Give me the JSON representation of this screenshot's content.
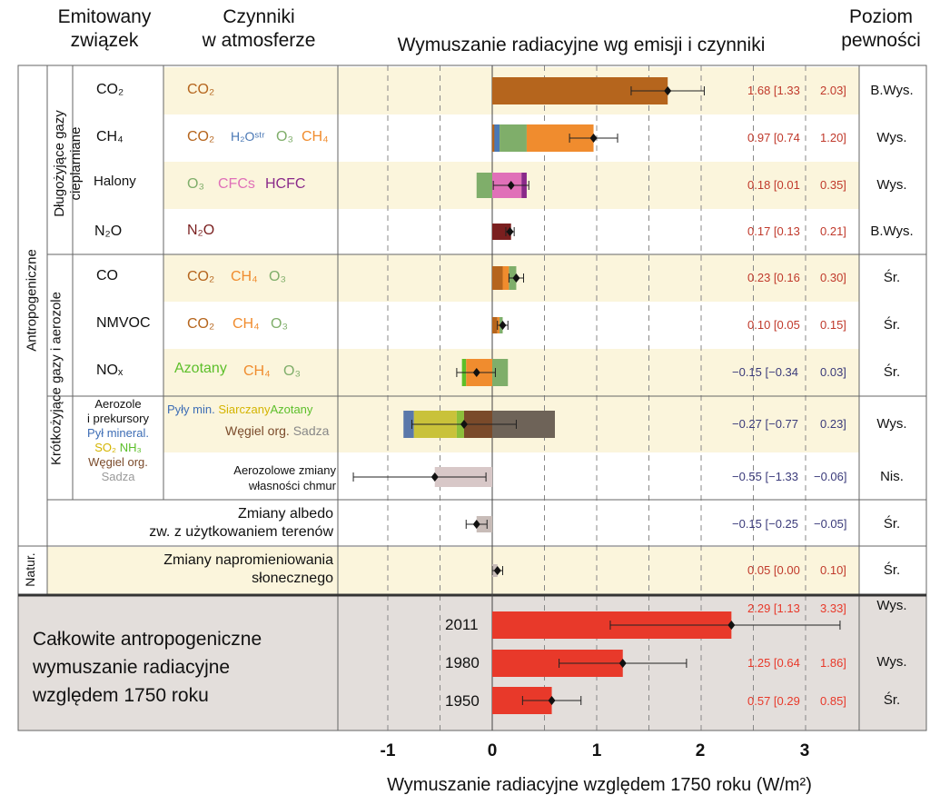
{
  "headers": {
    "emitted_line1": "Emitowany",
    "emitted_line2": "związek",
    "drivers_line1": "Czynniki",
    "drivers_line2": "w atmosferze",
    "forcing": "Wymuszanie radiacyjne wg emisji i czynniki",
    "confidence_line1": "Poziom",
    "confidence_line2": "pewności"
  },
  "groups": {
    "anthropogenic": "Antropogeniczne",
    "natural": "Natur.",
    "long_lived": "Długożyjące gazy cieplarniane",
    "short_lived": "Krótkożyjące gazy i aerozole"
  },
  "rows": [
    {
      "emitted": "CO₂",
      "drivers": [
        {
          "t": "CO₂",
          "c": "#b5651d"
        }
      ],
      "value": "1.68 [1.33",
      "upper": "2.03]",
      "confidence": "B.Wys."
    },
    {
      "emitted": "CH₄",
      "drivers": [
        {
          "t": "CO₂",
          "c": "#b5651d"
        },
        {
          "t": "H₂Oˢᵗʳ",
          "c": "#4a78b5"
        },
        {
          "t": "O₃",
          "c": "#7fae6a"
        },
        {
          "t": "CH₄",
          "c": "#f08c2e"
        }
      ],
      "value": "0.97 [0.74",
      "upper": "1.20]",
      "confidence": "Wys."
    },
    {
      "emitted": "Halony",
      "drivers": [
        {
          "t": "O₃",
          "c": "#7fae6a"
        },
        {
          "t": "CFCs",
          "c": "#e070b8"
        },
        {
          "t": "HCFC",
          "c": "#8a2a8a"
        }
      ],
      "value": "0.18 [0.01",
      "upper": "0.35]",
      "confidence": "Wys."
    },
    {
      "emitted": "N₂O",
      "drivers": [
        {
          "t": "N₂O",
          "c": "#7a1f1f"
        }
      ],
      "value": "0.17 [0.13",
      "upper": "0.21]",
      "confidence": "B.Wys."
    },
    {
      "emitted": "CO",
      "drivers": [
        {
          "t": "CO₂",
          "c": "#b5651d"
        },
        {
          "t": "CH₄",
          "c": "#f08c2e"
        },
        {
          "t": "O₃",
          "c": "#7fae6a"
        }
      ],
      "value": "0.23 [0.16",
      "upper": "0.30]",
      "confidence": "Śr."
    },
    {
      "emitted": "NMVOC",
      "drivers": [
        {
          "t": "CO₂",
          "c": "#b5651d"
        },
        {
          "t": "CH₄",
          "c": "#f08c2e"
        },
        {
          "t": "O₃",
          "c": "#7fae6a"
        }
      ],
      "value": "0.10 [0.05",
      "upper": "0.15]",
      "confidence": "Śr."
    },
    {
      "emitted": "NOₓ",
      "drivers": [
        {
          "t": "Azotany",
          "c": "#5cbf2a"
        },
        {
          "t": "CH₄",
          "c": "#f08c2e"
        },
        {
          "t": "O₃",
          "c": "#7fae6a"
        }
      ],
      "value": "−0.15 [−0.34",
      "upper": "0.03]",
      "confidence": "Śr."
    },
    {
      "emitted": "",
      "drivers": [],
      "value": "−0.27 [−0.77",
      "upper": "0.23]",
      "confidence": "Wys."
    },
    {
      "emitted": "",
      "drivers": [],
      "value": "−0.55 [−1.33",
      "upper": "−0.06]",
      "confidence": "Nis."
    },
    {
      "emitted": "",
      "drivers": [],
      "value": "−0.15 [−0.25",
      "upper": "−0.05]",
      "confidence": "Śr."
    },
    {
      "emitted": "",
      "drivers": [],
      "value": "0.05 [0.00",
      "upper": "0.10]",
      "confidence": "Śr."
    }
  ],
  "aerosol_emitted": {
    "line1": "Aerozole",
    "line2": "i prekursory",
    "line3": "Pył mineral.",
    "line4a": "SO₂",
    "line4b": "NH₃",
    "line5": "Węgiel org.",
    "line6": "Sadza"
  },
  "aerosol_drivers": {
    "dust": "Pyły min.",
    "sulphate": "Siarczany",
    "nitrate": "Azotany",
    "organic": "Węgiel org.",
    "bc": "Sadza"
  },
  "cloud_label_line1": "Aerozolowe zmiany",
  "cloud_label_line2": "własności chmur",
  "albedo_line1": "Zmiany albedo",
  "albedo_line2": "zw. z użytkowaniem terenów",
  "solar_line1": "Zmiany napromieniowania",
  "solar_line2": "słonecznego",
  "total": {
    "line1": "Całkowite antropogeniczne",
    "line2": "wymuszanie radiacyjne",
    "line3": "względem 1750 roku",
    "years": [
      {
        "year": "2011",
        "value": "2.29 [1.13",
        "upper": "3.33]",
        "confidence": "Wys."
      },
      {
        "year": "1980",
        "value": "1.25 [0.64",
        "upper": "1.86]",
        "confidence": "Wys."
      },
      {
        "year": "1950",
        "value": "0.57 [0.29",
        "upper": "0.85]",
        "confidence": "Śr."
      }
    ]
  },
  "xaxis": {
    "ticks": [
      "-1",
      "0",
      "1",
      "2",
      "3"
    ],
    "label": "Wymuszanie radiacyjne względem 1750 roku (W/m²)"
  },
  "chart_data": {
    "type": "bar",
    "xlim": [
      -1.45,
      3.5
    ],
    "xlabel": "Wymuszanie radiacyjne względem 1750 roku (W/m²)",
    "grid": "dashed vertical at 0.5 steps",
    "rows": [
      {
        "label": "CO₂",
        "best": 1.68,
        "low": 1.33,
        "high": 2.03,
        "segments": [
          {
            "from": 0,
            "to": 1.68,
            "color": "#b5651d"
          }
        ]
      },
      {
        "label": "CH₄",
        "best": 0.97,
        "low": 0.74,
        "high": 1.2,
        "segments": [
          {
            "from": 0,
            "to": 0.07,
            "color": "#4a78b5"
          },
          {
            "from": 0.07,
            "to": 0.33,
            "color": "#7fae6a"
          },
          {
            "from": 0.33,
            "to": 0.97,
            "color": "#f08c2e"
          },
          {
            "from": 0,
            "to": 0.02,
            "color": "#b5651d"
          }
        ]
      },
      {
        "label": "Halony",
        "best": 0.18,
        "low": 0.01,
        "high": 0.35,
        "segments": [
          {
            "from": -0.15,
            "to": 0,
            "color": "#7fae6a"
          },
          {
            "from": 0,
            "to": 0.28,
            "color": "#e070b8"
          },
          {
            "from": 0.28,
            "to": 0.33,
            "color": "#8a2a8a"
          }
        ]
      },
      {
        "label": "N₂O",
        "best": 0.17,
        "low": 0.13,
        "high": 0.21,
        "segments": [
          {
            "from": 0,
            "to": 0.18,
            "color": "#7a1f1f"
          }
        ]
      },
      {
        "label": "CO",
        "best": 0.23,
        "low": 0.16,
        "high": 0.3,
        "segments": [
          {
            "from": 0,
            "to": 0.1,
            "color": "#b5651d"
          },
          {
            "from": 0.1,
            "to": 0.16,
            "color": "#f08c2e"
          },
          {
            "from": 0.16,
            "to": 0.23,
            "color": "#7fae6a"
          }
        ]
      },
      {
        "label": "NMVOC",
        "best": 0.1,
        "low": 0.05,
        "high": 0.15,
        "segments": [
          {
            "from": 0,
            "to": 0.05,
            "color": "#b5651d"
          },
          {
            "from": 0.05,
            "to": 0.07,
            "color": "#f08c2e"
          },
          {
            "from": 0.07,
            "to": 0.1,
            "color": "#7fae6a"
          }
        ]
      },
      {
        "label": "NOₓ",
        "best": -0.15,
        "low": -0.34,
        "high": 0.03,
        "segments": [
          {
            "from": -0.29,
            "to": -0.25,
            "color": "#5cbf2a"
          },
          {
            "from": -0.25,
            "to": 0,
            "color": "#f08c2e"
          },
          {
            "from": 0,
            "to": 0.15,
            "color": "#7fae6a"
          }
        ]
      },
      {
        "label": "Aerozole i prekursory",
        "best": -0.27,
        "low": -0.77,
        "high": 0.23,
        "segments": [
          {
            "from": -0.85,
            "to": -0.75,
            "color": "#5a78aa"
          },
          {
            "from": -0.75,
            "to": -0.34,
            "color": "#c9c23a"
          },
          {
            "from": -0.34,
            "to": -0.27,
            "color": "#8cbf3a"
          },
          {
            "from": -0.27,
            "to": 0,
            "color": "#7a4a2a"
          },
          {
            "from": 0,
            "to": 0.6,
            "color": "#6e6358"
          }
        ]
      },
      {
        "label": "Aerozolowe zmiany własności chmur",
        "best": -0.55,
        "low": -1.33,
        "high": -0.06,
        "segments": [
          {
            "from": -0.55,
            "to": 0,
            "color": "#d8c8c8"
          }
        ]
      },
      {
        "label": "Zmiany albedo",
        "best": -0.15,
        "low": -0.25,
        "high": -0.05,
        "segments": [
          {
            "from": -0.15,
            "to": 0,
            "color": "#c8bcb8"
          }
        ]
      },
      {
        "label": "Zmiany napromieniowania słonecznego",
        "best": 0.05,
        "low": 0.0,
        "high": 0.1,
        "segments": [
          {
            "from": 0,
            "to": 0.05,
            "color": "#c8bcb8"
          }
        ]
      },
      {
        "label": "2011",
        "best": 2.29,
        "low": 1.13,
        "high": 3.33,
        "segments": [
          {
            "from": 0,
            "to": 2.29,
            "color": "#e8392a"
          }
        ]
      },
      {
        "label": "1980",
        "best": 1.25,
        "low": 0.64,
        "high": 1.86,
        "segments": [
          {
            "from": 0,
            "to": 1.25,
            "color": "#e8392a"
          }
        ]
      },
      {
        "label": "1950",
        "best": 0.57,
        "low": 0.29,
        "high": 0.85,
        "segments": [
          {
            "from": 0,
            "to": 0.57,
            "color": "#e8392a"
          }
        ]
      }
    ]
  }
}
